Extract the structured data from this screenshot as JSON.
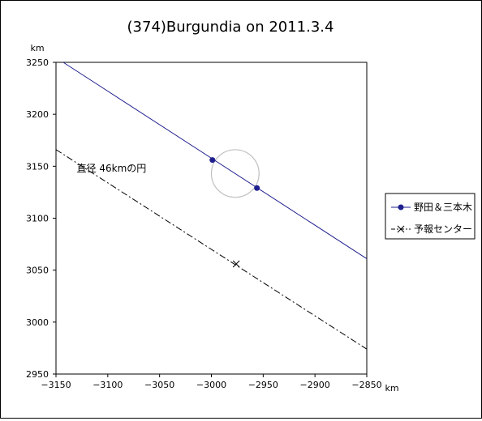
{
  "chart_data": {
    "type": "line",
    "title": "(374)Burgundia on 2011.3.4",
    "xunit": "km",
    "yunit": "km",
    "xlim": [
      -3150,
      -2850
    ],
    "ylim": [
      2950,
      3250
    ],
    "xticks": [
      -3150,
      -3100,
      -3050,
      -3000,
      -2950,
      -2900,
      -2850
    ],
    "yticks": [
      2950,
      3000,
      3050,
      3100,
      3150,
      3200,
      3250
    ],
    "xtick_labels": [
      "−3150",
      "−3100",
      "−3050",
      "−3000",
      "−2950",
      "−2900",
      "−2850"
    ],
    "ytick_labels": [
      "2950",
      "3000",
      "3050",
      "3100",
      "3150",
      "3200",
      "3250"
    ],
    "grid": false,
    "legend_position": "right",
    "series": [
      {
        "name": "野田＆三本木",
        "style": "solid",
        "color": "#1f1f8f",
        "line": [
          [
            -3143,
            3250
          ],
          [
            -2850,
            3061
          ]
        ],
        "points": [
          [
            -2999,
            3156
          ],
          [
            -2956,
            3129
          ]
        ]
      },
      {
        "name": "予報センター",
        "style": "dashdot",
        "color": "#000000",
        "line": [
          [
            -3150,
            3166
          ],
          [
            -2850,
            2974
          ]
        ],
        "points": [
          [
            -2976,
            3056
          ]
        ]
      }
    ],
    "circle": {
      "center": [
        -2977,
        3143
      ],
      "diameter": 46,
      "color": "#c0c0c0"
    },
    "annotation": {
      "text": "直径 46kmの円",
      "at": [
        -3130,
        3145
      ]
    }
  }
}
